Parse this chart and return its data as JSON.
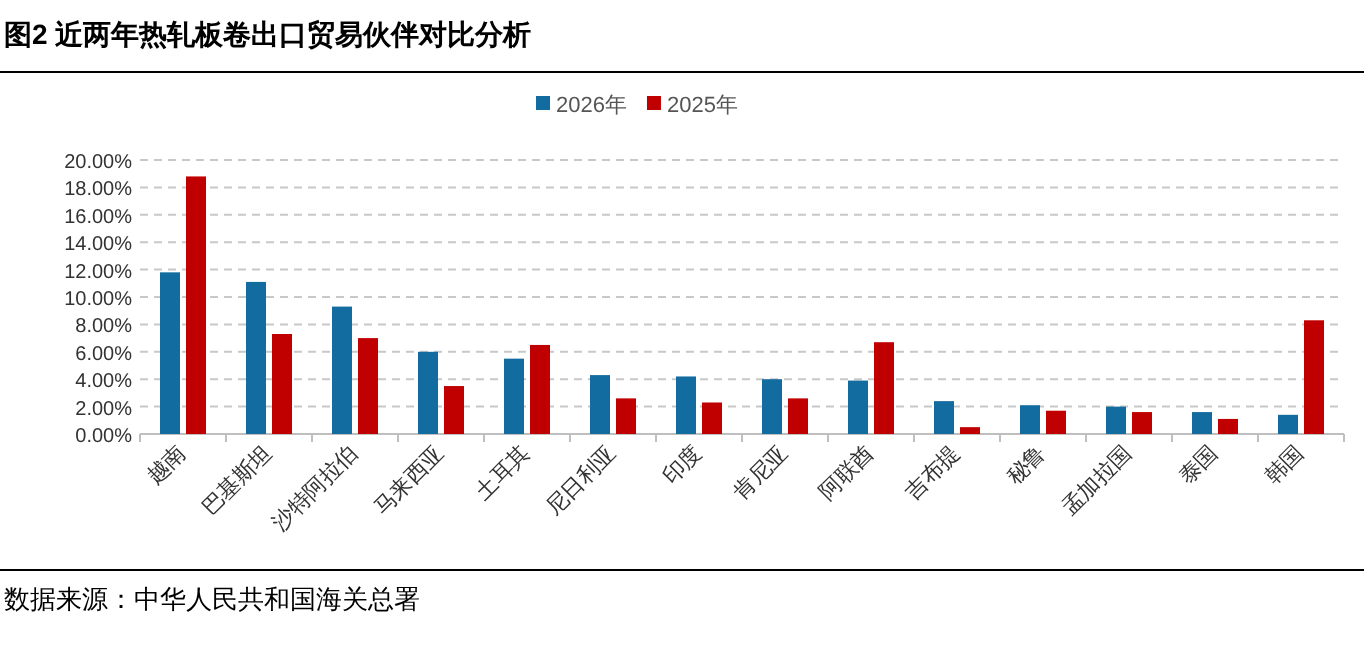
{
  "chart_data": {
    "type": "bar",
    "title": "图2  近两年热轧板卷出口贸易伙伴对比分析",
    "categories": [
      "越南",
      "巴基斯坦",
      "沙特阿拉伯",
      "马来西亚",
      "土耳其",
      "尼日利亚",
      "印度",
      "肯尼亚",
      "阿联酋",
      "吉布提",
      "秘鲁",
      "孟加拉国",
      "泰国",
      "韩国"
    ],
    "series": [
      {
        "name": "2026年",
        "color": "#136c9f",
        "values": [
          11.8,
          11.1,
          9.3,
          6.0,
          5.5,
          4.3,
          4.2,
          4.0,
          3.9,
          2.4,
          2.1,
          2.0,
          1.6,
          1.4
        ]
      },
      {
        "name": "2025年",
        "color": "#c00000",
        "values": [
          18.8,
          7.3,
          7.0,
          3.5,
          6.5,
          2.6,
          2.3,
          2.6,
          6.7,
          0.5,
          1.7,
          1.6,
          1.1,
          8.3
        ]
      }
    ],
    "ylim": [
      0,
      20
    ],
    "yticks": [
      {
        "value": 0,
        "label": "0.00%"
      },
      {
        "value": 2,
        "label": "2.00%"
      },
      {
        "value": 4,
        "label": "4.00%"
      },
      {
        "value": 6,
        "label": "6.00%"
      },
      {
        "value": 8,
        "label": "8.00%"
      },
      {
        "value": 10,
        "label": "10.00%"
      },
      {
        "value": 12,
        "label": "12.00%"
      },
      {
        "value": 14,
        "label": "14.00%"
      },
      {
        "value": 16,
        "label": "16.00%"
      },
      {
        "value": 18,
        "label": "18.00%"
      },
      {
        "value": 20,
        "label": "20.00%"
      }
    ],
    "grid": "y",
    "legend": "top",
    "annotations": [
      "数据来源：中华人民共和国海关总署"
    ]
  }
}
